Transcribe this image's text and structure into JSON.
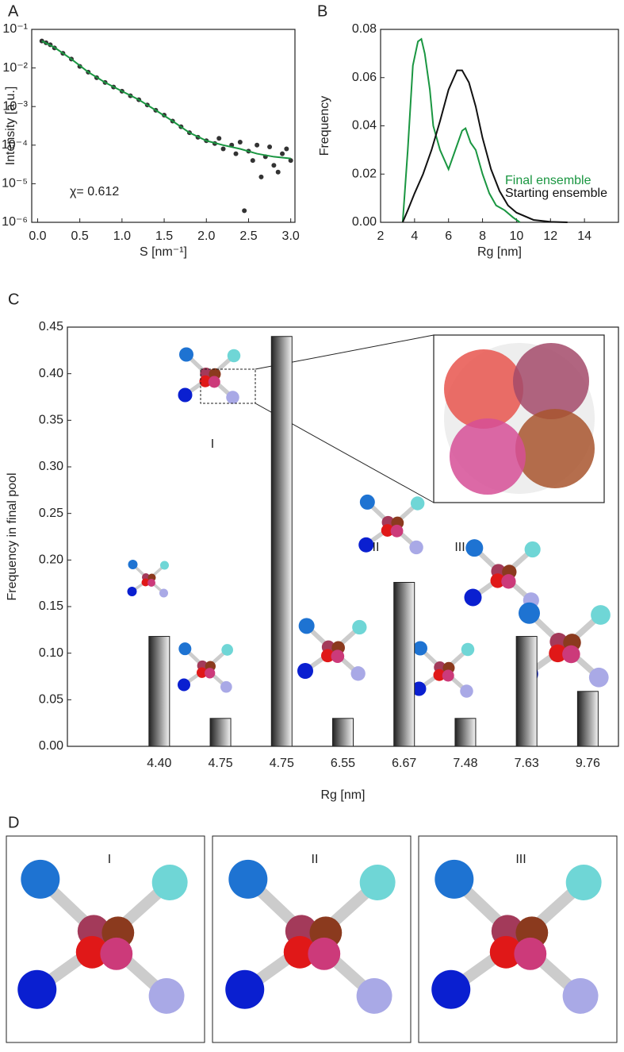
{
  "chart_data": [
    {
      "type": "scatter",
      "panel": "A",
      "log_y": true,
      "xlabel": "S [nm⁻¹]",
      "ylabel": "Intensity [a.u.]",
      "annotation": "χ= 0.612",
      "xlim": [
        -0.07,
        3.05
      ],
      "ylim": [
        1e-06,
        0.1
      ],
      "xticks": [
        {
          "value": 0,
          "label": "0.0"
        },
        0.5,
        {
          "value": 1,
          "label": "1.0"
        },
        1.5,
        {
          "value": 2,
          "label": "2.0"
        },
        2.5,
        {
          "value": 3,
          "label": "3.0"
        }
      ],
      "yticks": [
        {
          "value": 1e-06,
          "label": "10⁻⁶"
        },
        {
          "value": 1e-05,
          "label": "10⁻⁵"
        },
        {
          "value": 0.0001,
          "label": "10⁻⁴"
        },
        {
          "value": 0.001,
          "label": "10⁻³"
        },
        {
          "value": 0.01,
          "label": "10⁻²"
        },
        {
          "value": 0.1,
          "label": "10⁻¹"
        }
      ],
      "series": [
        {
          "mode": "markers",
          "color": "#333333",
          "x": [
            0.05,
            0.1,
            0.15,
            0.2,
            0.3,
            0.4,
            0.5,
            0.6,
            0.7,
            0.8,
            0.9,
            1.0,
            1.1,
            1.2,
            1.3,
            1.4,
            1.5,
            1.6,
            1.7,
            1.8,
            1.9,
            2.0,
            2.1,
            2.15,
            2.2,
            2.3,
            2.35,
            2.4,
            2.5,
            2.55,
            2.6,
            2.7,
            2.75,
            2.8,
            2.9,
            2.95,
            3.0,
            2.45,
            2.65,
            2.85
          ],
          "values": [
            0.05,
            0.045,
            0.04,
            0.033,
            0.024,
            0.017,
            0.011,
            0.0078,
            0.0056,
            0.0042,
            0.0032,
            0.0025,
            0.0019,
            0.0015,
            0.0011,
            0.0008,
            0.0006,
            0.00042,
            0.0003,
            0.00021,
            0.00016,
            0.00013,
            0.00011,
            0.00015,
            8e-05,
            0.0001,
            6e-05,
            0.00012,
            7e-05,
            4e-05,
            0.0001,
            5e-05,
            9e-05,
            3e-05,
            6e-05,
            8e-05,
            4e-05,
            2e-06,
            1.5e-05,
            2e-05
          ]
        },
        {
          "mode": "line",
          "color": "#1a9641",
          "x": [
            0.05,
            0.2,
            0.4,
            0.6,
            0.8,
            1.0,
            1.2,
            1.4,
            1.6,
            1.8,
            2.0,
            2.2,
            2.4,
            2.6,
            2.8,
            3.0
          ],
          "values": [
            0.05,
            0.034,
            0.017,
            0.0078,
            0.0042,
            0.0025,
            0.0015,
            0.0008,
            0.00042,
            0.00021,
            0.00013,
            0.0001,
            8e-05,
            6e-05,
            5e-05,
            4.5e-05
          ]
        }
      ]
    },
    {
      "type": "line",
      "panel": "B",
      "xlabel": "Rg [nm]",
      "ylabel": "Frequency",
      "legend": "lower right",
      "xlim": [
        2,
        16
      ],
      "ylim": [
        0,
        0.08
      ],
      "xticks": [
        2,
        4,
        6,
        8,
        10,
        12,
        14
      ],
      "yticks": [
        {
          "value": 0,
          "label": "0.00"
        },
        0.02,
        0.04,
        0.06,
        0.08
      ],
      "series": [
        {
          "name": "Final ensemble",
          "color": "#1a9641",
          "x": [
            3.3,
            3.6,
            3.9,
            4.2,
            4.4,
            4.6,
            4.9,
            5.1,
            5.5,
            6.0,
            6.4,
            6.8,
            7.0,
            7.3,
            7.6,
            8.0,
            8.4,
            8.8,
            9.3,
            9.8,
            10.2
          ],
          "values": [
            0,
            0.03,
            0.065,
            0.075,
            0.076,
            0.07,
            0.055,
            0.04,
            0.03,
            0.022,
            0.03,
            0.038,
            0.039,
            0.033,
            0.03,
            0.02,
            0.012,
            0.007,
            0.005,
            0.002,
            0
          ]
        },
        {
          "name": "Starting ensemble",
          "color": "#111111",
          "x": [
            3.3,
            3.6,
            4.0,
            4.5,
            5.0,
            5.5,
            6.0,
            6.5,
            6.8,
            7.2,
            7.6,
            8.0,
            8.5,
            9.0,
            9.5,
            10.0,
            11.0,
            12.0,
            13.0
          ],
          "values": [
            0,
            0.005,
            0.012,
            0.02,
            0.03,
            0.042,
            0.055,
            0.063,
            0.063,
            0.058,
            0.048,
            0.035,
            0.022,
            0.013,
            0.007,
            0.004,
            0.001,
            0.0002,
            0
          ]
        }
      ]
    },
    {
      "type": "bar",
      "panel": "C",
      "xlabel": "Rg [nm]",
      "ylabel": "Frequency in final pool",
      "annotations": [
        "I",
        "II",
        "III"
      ],
      "categories": [
        null,
        "4.40",
        "4.75",
        "4.75",
        "6.55",
        "6.67",
        "7.48",
        "7.63",
        "9.76"
      ],
      "values": [
        null,
        0.118,
        0.03,
        0.44,
        0.03,
        0.176,
        0.03,
        0.118,
        0.059
      ],
      "ylim": [
        0,
        0.45
      ],
      "yticks": [
        {
          "value": 0,
          "label": "0.00"
        },
        0.05,
        {
          "value": 0.1,
          "label": "0.10"
        },
        0.15,
        {
          "value": 0.2,
          "label": "0.20"
        },
        0.25,
        {
          "value": 0.3,
          "label": "0.30"
        },
        0.35,
        {
          "value": 0.4,
          "label": "0.40"
        },
        0.45
      ]
    }
  ],
  "panel_d": {
    "label": "D",
    "structures": [
      "I",
      "II",
      "III"
    ]
  }
}
